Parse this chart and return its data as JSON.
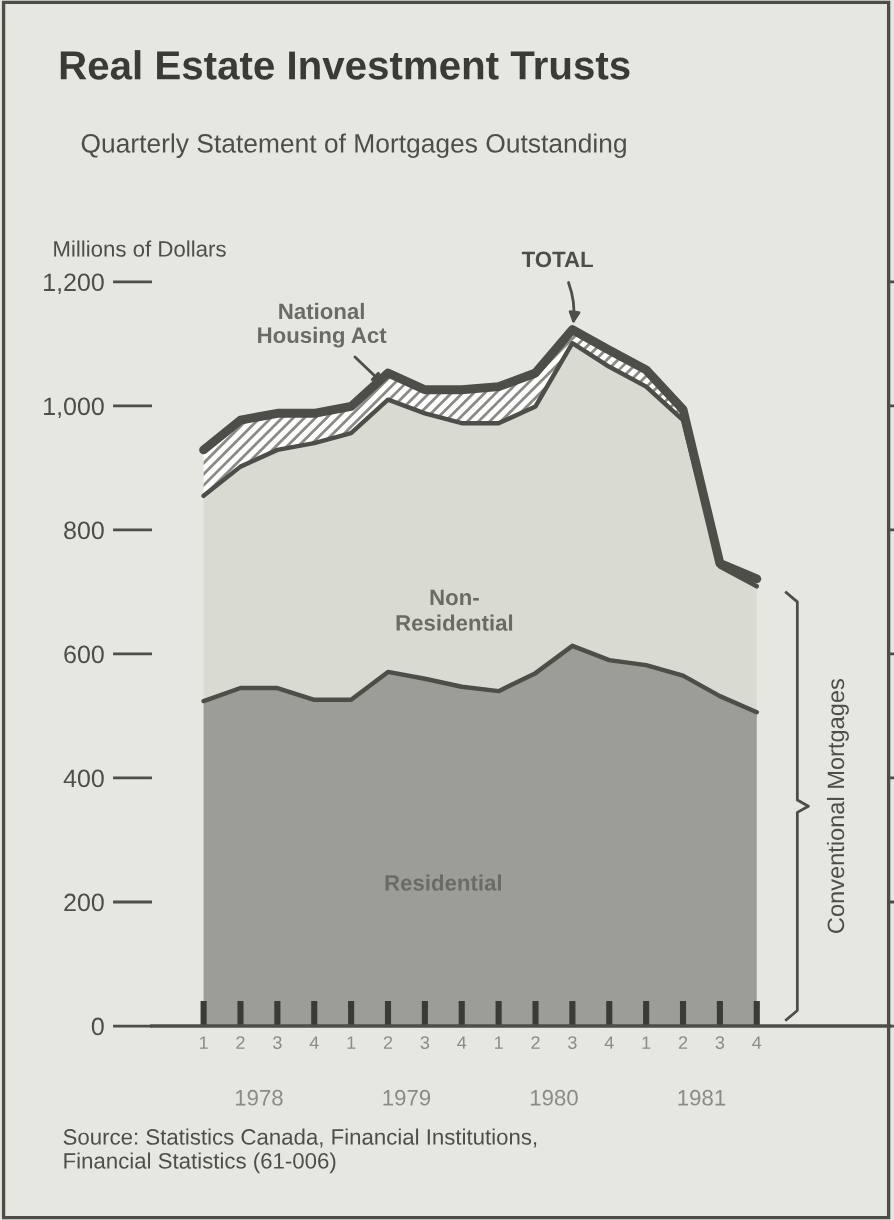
{
  "chart_data": {
    "type": "area",
    "stacked": true,
    "title": "Real Estate Investment Trusts",
    "subtitle": "Quarterly Statement of Mortgages Outstanding",
    "ylabel": "Millions of Dollars",
    "categories": [
      "1",
      "2",
      "3",
      "4",
      "1",
      "2",
      "3",
      "4",
      "1",
      "2",
      "3",
      "4",
      "1",
      "2",
      "3",
      "4"
    ],
    "series": [
      {
        "name": "Residential",
        "color": "#9c9d96",
        "values": [
          524,
          545,
          545,
          526,
          526,
          571,
          560,
          547,
          540,
          569,
          613,
          590,
          582,
          565,
          532,
          506
        ]
      },
      {
        "name": "Non-\nResidential",
        "color": "#d9dbd3",
        "values": [
          331,
          357,
          384,
          414,
          430,
          439,
          428,
          425,
          432,
          430,
          488,
          473,
          449,
          412,
          209,
          203
        ]
      },
      {
        "name": "National\nHousing Act",
        "color": "#ffffff",
        "values": [
          74,
          75,
          59,
          48,
          43,
          43,
          38,
          54,
          59,
          54,
          22,
          27,
          27,
          17,
          5,
          12
        ]
      }
    ],
    "ylim": [
      0,
      1200
    ],
    "yticks": [
      0,
      200,
      400,
      600,
      800,
      {
        "value": 1000,
        "label": "1,000"
      },
      {
        "value": 1200,
        "label": "1,200"
      }
    ],
    "grid": false,
    "legend": false,
    "annotations": [
      "TOTAL",
      "1978",
      "1979",
      "1980",
      "1981",
      "Conventional Mortgages",
      "Source: Statistics Canada, Financial Institutions,\nFinancial Statistics (61-006)"
    ]
  }
}
